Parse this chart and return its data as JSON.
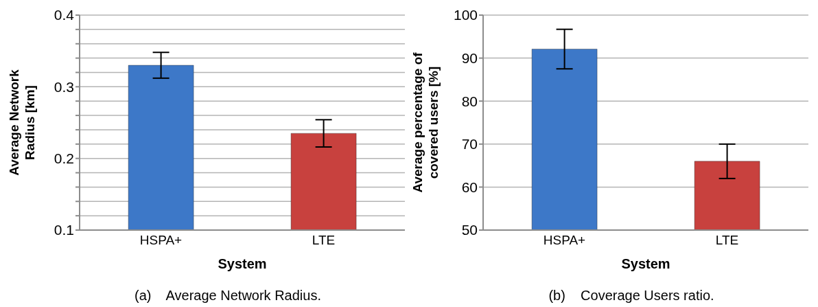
{
  "chart_data": [
    {
      "type": "bar",
      "title": "(a)    Average Network Radius.",
      "xlabel": "System",
      "ylabel": "Average Network\nRadius [km]",
      "categories": [
        "HSPA+",
        "LTE"
      ],
      "values": [
        0.33,
        0.235
      ],
      "errors": [
        0.018,
        0.019
      ],
      "colors": [
        "#3d78c8",
        "#c8413e"
      ],
      "ylim": [
        0.1,
        0.4
      ],
      "yticks": [
        0.1,
        {
          "value": 0.12,
          "label": null
        },
        {
          "value": 0.14,
          "label": null
        },
        {
          "value": 0.16,
          "label": null
        },
        {
          "value": 0.18,
          "label": null
        },
        0.2,
        {
          "value": 0.22,
          "label": null
        },
        {
          "value": 0.24,
          "label": null
        },
        {
          "value": 0.26,
          "label": null
        },
        {
          "value": 0.28,
          "label": null
        },
        0.3,
        {
          "value": 0.32,
          "label": null
        },
        {
          "value": 0.34,
          "label": null
        },
        {
          "value": 0.36,
          "label": null
        },
        {
          "value": 0.38,
          "label": null
        },
        0.4
      ],
      "grid": true
    },
    {
      "type": "bar",
      "title": "(b)    Coverage Users ratio.",
      "xlabel": "System",
      "ylabel": "Average percentage of\ncovered users [%]",
      "categories": [
        "HSPA+",
        "LTE"
      ],
      "values": [
        92.1,
        66.0
      ],
      "errors": [
        4.6,
        4.0
      ],
      "colors": [
        "#3d78c8",
        "#c8413e"
      ],
      "ylim": [
        50,
        100
      ],
      "yticks": [
        50,
        60,
        70,
        80,
        90,
        100
      ],
      "grid": true
    }
  ]
}
